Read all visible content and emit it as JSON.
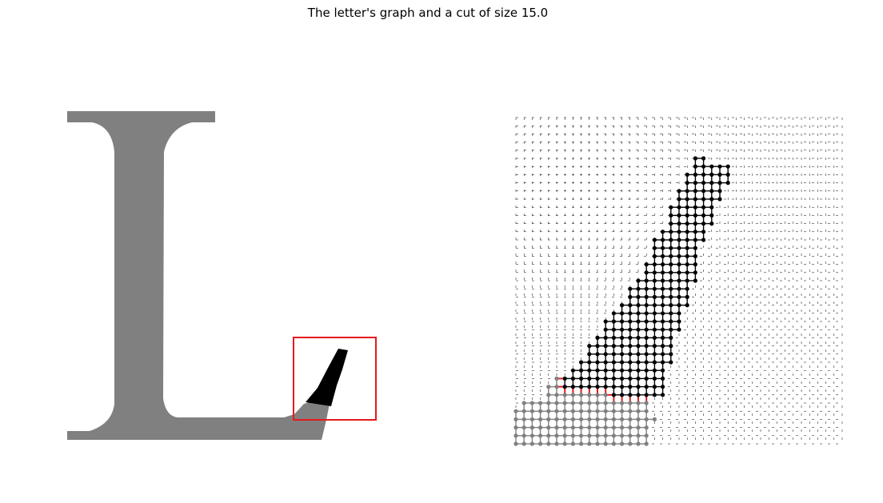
{
  "figure": {
    "title": "The letter's graph and a cut of size 15.0"
  },
  "colors": {
    "letter_fill": "#808080",
    "cut_region": "#000000",
    "zoom_box": "#e41a1c",
    "node_side_a": "#000000",
    "node_side_b": "#808080",
    "cut_edges": "#e41a1c",
    "background_grid": "#000000"
  },
  "letter": {
    "glyph": "L",
    "zoom_box_visible": true
  },
  "graph": {
    "grid_columns": 40,
    "grid_rows": 40,
    "cut_size": 15.0,
    "side_a_color": "black",
    "side_b_color": "gray"
  }
}
